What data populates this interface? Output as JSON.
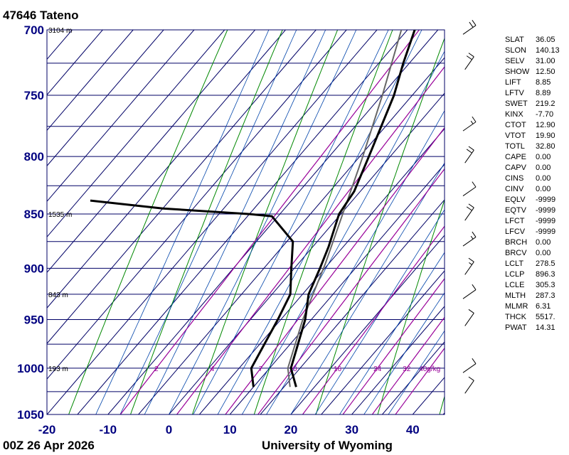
{
  "header": {
    "station": "47646  Tateno"
  },
  "footer": {
    "date": "00Z 26 Apr 2026",
    "source": "University of Wyoming"
  },
  "indices": [
    {
      "key": "SLAT",
      "value": "36.05"
    },
    {
      "key": "SLON",
      "value": "140.13"
    },
    {
      "key": "SELV",
      "value": "31.00"
    },
    {
      "key": "SHOW",
      "value": "12.50"
    },
    {
      "key": "LIFT",
      "value": "8.85"
    },
    {
      "key": "LFTV",
      "value": "8.89"
    },
    {
      "key": "SWET",
      "value": "219.2"
    },
    {
      "key": "KINX",
      "value": "-7.70"
    },
    {
      "key": "CTOT",
      "value": "12.90"
    },
    {
      "key": "VTOT",
      "value": "19.90"
    },
    {
      "key": "TOTL",
      "value": "32.80"
    },
    {
      "key": "CAPE",
      "value": "0.00"
    },
    {
      "key": "CAPV",
      "value": "0.00"
    },
    {
      "key": "CINS",
      "value": "0.00"
    },
    {
      "key": "CINV",
      "value": "0.00"
    },
    {
      "key": "EQLV",
      "value": "-9999"
    },
    {
      "key": "EQTV",
      "value": "-9999"
    },
    {
      "key": "LFCT",
      "value": "-9999"
    },
    {
      "key": "LFCV",
      "value": "-9999"
    },
    {
      "key": "BRCH",
      "value": "0.00"
    },
    {
      "key": "BRCV",
      "value": "0.00"
    },
    {
      "key": "LCLT",
      "value": "278.5"
    },
    {
      "key": "LCLP",
      "value": "896.3"
    },
    {
      "key": "LCLE",
      "value": "305.3"
    },
    {
      "key": "MLTH",
      "value": "287.3"
    },
    {
      "key": "MLMR",
      "value": "6.31"
    },
    {
      "key": "THCK",
      "value": "5517."
    },
    {
      "key": "PWAT",
      "value": "14.31"
    }
  ],
  "chart_data": {
    "type": "skew-t",
    "pressure_ticks": [
      700,
      750,
      800,
      850,
      900,
      950,
      1000,
      1050
    ],
    "temperature_ticks": [
      -20,
      -10,
      0,
      10,
      20,
      30,
      40
    ],
    "pressure_range": [
      700,
      1050
    ],
    "temperature_range_at_1050": [
      -20,
      45
    ],
    "height_labels": [
      {
        "p": 700,
        "text": "3104 m"
      },
      {
        "p": 850,
        "text": "1535 m"
      },
      {
        "p": 925,
        "text": "843 m"
      },
      {
        "p": 1000,
        "text": "193 m"
      }
    ],
    "mixing_ratio_labels": [
      "2",
      "4",
      "7",
      "10",
      "16",
      "24",
      "32",
      "40g/kg"
    ],
    "mixing_ratio_values": [
      2,
      4,
      7,
      10,
      16,
      24,
      32,
      40
    ],
    "temperature_profile": [
      {
        "p": 1020,
        "t": 17.0
      },
      {
        "p": 1000,
        "t": 13.5
      },
      {
        "p": 950,
        "t": 9.0
      },
      {
        "p": 925,
        "t": 6.0
      },
      {
        "p": 900,
        "t": 4.2
      },
      {
        "p": 880,
        "t": 2.6
      },
      {
        "p": 850,
        "t": -0.3
      },
      {
        "p": 830,
        "t": -1.0
      },
      {
        "p": 800,
        "t": -3.5
      },
      {
        "p": 750,
        "t": -8.0
      },
      {
        "p": 725,
        "t": -11.0
      },
      {
        "p": 700,
        "t": -13.8
      }
    ],
    "dewpoint_profile": [
      {
        "p": 1020,
        "t": 10.0
      },
      {
        "p": 1000,
        "t": 7.0
      },
      {
        "p": 950,
        "t": 4.5
      },
      {
        "p": 925,
        "t": 3.0
      },
      {
        "p": 900,
        "t": -0.5
      },
      {
        "p": 875,
        "t": -4.0
      },
      {
        "p": 852,
        "t": -11.0
      },
      {
        "p": 850,
        "t": -15.0
      },
      {
        "p": 845,
        "t": -30.0
      },
      {
        "p": 838,
        "t": -43.0
      }
    ],
    "parcel_profile": [
      {
        "p": 1020,
        "t": 16.0
      },
      {
        "p": 1000,
        "t": 13.0
      },
      {
        "p": 950,
        "t": 8.6
      },
      {
        "p": 896.3,
        "t": 4.5
      },
      {
        "p": 850,
        "t": 0.3
      },
      {
        "p": 800,
        "t": -4.5
      },
      {
        "p": 750,
        "t": -9.9
      },
      {
        "p": 700,
        "t": -16.0
      }
    ],
    "wind_barbs": [
      {
        "p": 1020,
        "speed_kt": 10
      },
      {
        "p": 1000,
        "speed_kt": 10
      },
      {
        "p": 950,
        "speed_kt": 10
      },
      {
        "p": 925,
        "speed_kt": 10
      },
      {
        "p": 900,
        "speed_kt": 15
      },
      {
        "p": 875,
        "speed_kt": 15
      },
      {
        "p": 850,
        "speed_kt": 20
      },
      {
        "p": 830,
        "speed_kt": 10
      },
      {
        "p": 800,
        "speed_kt": 20
      },
      {
        "p": 775,
        "speed_kt": 15
      },
      {
        "p": 725,
        "speed_kt": 20
      },
      {
        "p": 700,
        "speed_kt": 20
      }
    ],
    "colors": {
      "isobar": "#000066",
      "isotherm": "#000066",
      "mixing_ratio": "#990099",
      "dry_adiabat": "#008800",
      "moist_adiabat": "#0044aa",
      "temperature": "#000000",
      "parcel": "#666666",
      "tick_label": "#000080"
    }
  }
}
